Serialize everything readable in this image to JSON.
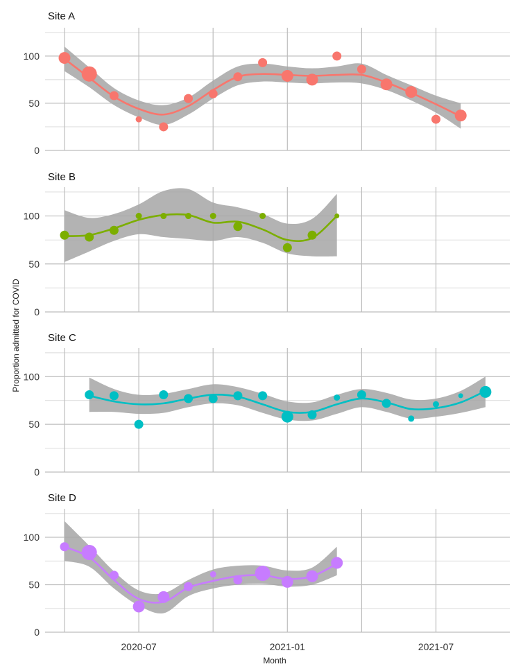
{
  "chart_data": {
    "type": "scatter",
    "xlabel": "Month",
    "ylabel": "Proportion admitted for COVID",
    "x_tick_labels": [
      "2020-07",
      "2021-01",
      "2021-07"
    ],
    "y_ticks": [
      0,
      50,
      100
    ],
    "ylim": [
      0,
      130
    ],
    "x_range_months": [
      "2020-04",
      "2021-09"
    ],
    "panels": [
      {
        "title": "Site A",
        "color": "#F8766D",
        "points": [
          {
            "month": "2020-04",
            "y": 98,
            "size": "large"
          },
          {
            "month": "2020-05",
            "y": 81,
            "size": "xlarge"
          },
          {
            "month": "2020-06",
            "y": 58,
            "size": "medium"
          },
          {
            "month": "2020-07",
            "y": 33,
            "size": "small"
          },
          {
            "month": "2020-08",
            "y": 25,
            "size": "medium"
          },
          {
            "month": "2020-09",
            "y": 55,
            "size": "medium"
          },
          {
            "month": "2020-10",
            "y": 60,
            "size": "medium"
          },
          {
            "month": "2020-11",
            "y": 78,
            "size": "medium"
          },
          {
            "month": "2020-12",
            "y": 93,
            "size": "medium"
          },
          {
            "month": "2021-01",
            "y": 79,
            "size": "large"
          },
          {
            "month": "2021-02",
            "y": 75,
            "size": "large"
          },
          {
            "month": "2021-03",
            "y": 100,
            "size": "medium"
          },
          {
            "month": "2021-04",
            "y": 86,
            "size": "medium"
          },
          {
            "month": "2021-05",
            "y": 70,
            "size": "large"
          },
          {
            "month": "2021-06",
            "y": 62,
            "size": "large"
          },
          {
            "month": "2021-07",
            "y": 33,
            "size": "medium"
          },
          {
            "month": "2021-08",
            "y": 37,
            "size": "large"
          }
        ],
        "smooth": [
          {
            "month": "2020-04",
            "y": 97,
            "lo": 84,
            "hi": 110
          },
          {
            "month": "2020-05",
            "y": 77,
            "lo": 67,
            "hi": 88
          },
          {
            "month": "2020-06",
            "y": 57,
            "lo": 48,
            "hi": 66
          },
          {
            "month": "2020-07",
            "y": 44,
            "lo": 35,
            "hi": 53
          },
          {
            "month": "2020-08",
            "y": 38,
            "lo": 27,
            "hi": 48
          },
          {
            "month": "2020-09",
            "y": 47,
            "lo": 38,
            "hi": 56
          },
          {
            "month": "2020-10",
            "y": 64,
            "lo": 55,
            "hi": 74
          },
          {
            "month": "2020-11",
            "y": 78,
            "lo": 69,
            "hi": 89
          },
          {
            "month": "2020-12",
            "y": 81,
            "lo": 73,
            "hi": 92
          },
          {
            "month": "2021-01",
            "y": 80,
            "lo": 72,
            "hi": 89
          },
          {
            "month": "2021-02",
            "y": 79,
            "lo": 71,
            "hi": 87
          },
          {
            "month": "2021-03",
            "y": 80,
            "lo": 72,
            "hi": 89
          },
          {
            "month": "2021-04",
            "y": 80,
            "lo": 71,
            "hi": 92
          },
          {
            "month": "2021-05",
            "y": 72,
            "lo": 64,
            "hi": 80
          },
          {
            "month": "2021-06",
            "y": 61,
            "lo": 53,
            "hi": 69
          },
          {
            "month": "2021-07",
            "y": 49,
            "lo": 40,
            "hi": 58
          },
          {
            "month": "2021-08",
            "y": 36,
            "lo": 23,
            "hi": 50
          }
        ]
      },
      {
        "title": "Site B",
        "color": "#7CAE00",
        "points": [
          {
            "month": "2020-04",
            "y": 80,
            "size": "medium"
          },
          {
            "month": "2020-05",
            "y": 78,
            "size": "medium"
          },
          {
            "month": "2020-06",
            "y": 85,
            "size": "medium"
          },
          {
            "month": "2020-07",
            "y": 100,
            "size": "small"
          },
          {
            "month": "2020-08",
            "y": 100,
            "size": "small"
          },
          {
            "month": "2020-09",
            "y": 100,
            "size": "small"
          },
          {
            "month": "2020-10",
            "y": 100,
            "size": "small"
          },
          {
            "month": "2020-11",
            "y": 89,
            "size": "medium"
          },
          {
            "month": "2020-12",
            "y": 100,
            "size": "small"
          },
          {
            "month": "2021-01",
            "y": 67,
            "size": "medium"
          },
          {
            "month": "2021-02",
            "y": 80,
            "size": "medium"
          },
          {
            "month": "2021-03",
            "y": 100,
            "size": "tiny"
          }
        ],
        "smooth": [
          {
            "month": "2020-04",
            "y": 79,
            "lo": 52,
            "hi": 106
          },
          {
            "month": "2020-05",
            "y": 80,
            "lo": 63,
            "hi": 98
          },
          {
            "month": "2020-06",
            "y": 87,
            "lo": 74,
            "hi": 102
          },
          {
            "month": "2020-07",
            "y": 96,
            "lo": 81,
            "hi": 112
          },
          {
            "month": "2020-08",
            "y": 101,
            "lo": 78,
            "hi": 126
          },
          {
            "month": "2020-09",
            "y": 101,
            "lo": 76,
            "hi": 128
          },
          {
            "month": "2020-10",
            "y": 93,
            "lo": 74,
            "hi": 114
          },
          {
            "month": "2020-11",
            "y": 94,
            "lo": 78,
            "hi": 109
          },
          {
            "month": "2020-12",
            "y": 86,
            "lo": 72,
            "hi": 102
          },
          {
            "month": "2021-01",
            "y": 75,
            "lo": 61,
            "hi": 92
          },
          {
            "month": "2021-02",
            "y": 77,
            "lo": 58,
            "hi": 97
          },
          {
            "month": "2021-03",
            "y": 100,
            "lo": 58,
            "hi": 123
          }
        ]
      },
      {
        "title": "Site C",
        "color": "#00BFC4",
        "points": [
          {
            "month": "2020-05",
            "y": 81,
            "size": "medium"
          },
          {
            "month": "2020-06",
            "y": 80,
            "size": "medium"
          },
          {
            "month": "2020-07",
            "y": 50,
            "size": "medium"
          },
          {
            "month": "2020-08",
            "y": 81,
            "size": "medium"
          },
          {
            "month": "2020-09",
            "y": 77,
            "size": "medium"
          },
          {
            "month": "2020-10",
            "y": 77,
            "size": "medium"
          },
          {
            "month": "2020-11",
            "y": 80,
            "size": "medium"
          },
          {
            "month": "2020-12",
            "y": 80,
            "size": "medium"
          },
          {
            "month": "2021-01",
            "y": 58,
            "size": "large"
          },
          {
            "month": "2021-02",
            "y": 60,
            "size": "medium"
          },
          {
            "month": "2021-03",
            "y": 78,
            "size": "small"
          },
          {
            "month": "2021-04",
            "y": 81,
            "size": "medium"
          },
          {
            "month": "2021-05",
            "y": 72,
            "size": "medium"
          },
          {
            "month": "2021-06",
            "y": 56,
            "size": "small"
          },
          {
            "month": "2021-07",
            "y": 71,
            "size": "small"
          },
          {
            "month": "2021-08",
            "y": 80,
            "size": "tiny"
          },
          {
            "month": "2021-09",
            "y": 84,
            "size": "large"
          }
        ],
        "smooth": [
          {
            "month": "2020-05",
            "y": 80,
            "lo": 63,
            "hi": 99
          },
          {
            "month": "2020-06",
            "y": 74,
            "lo": 63,
            "hi": 87
          },
          {
            "month": "2020-07",
            "y": 71,
            "lo": 61,
            "hi": 81
          },
          {
            "month": "2020-08",
            "y": 72,
            "lo": 62,
            "hi": 82
          },
          {
            "month": "2020-09",
            "y": 77,
            "lo": 68,
            "hi": 87
          },
          {
            "month": "2020-10",
            "y": 81,
            "lo": 72,
            "hi": 92
          },
          {
            "month": "2020-11",
            "y": 79,
            "lo": 70,
            "hi": 89
          },
          {
            "month": "2020-12",
            "y": 71,
            "lo": 62,
            "hi": 82
          },
          {
            "month": "2021-01",
            "y": 63,
            "lo": 55,
            "hi": 74
          },
          {
            "month": "2021-02",
            "y": 63,
            "lo": 54,
            "hi": 73
          },
          {
            "month": "2021-03",
            "y": 71,
            "lo": 61,
            "hi": 81
          },
          {
            "month": "2021-04",
            "y": 77,
            "lo": 68,
            "hi": 87
          },
          {
            "month": "2021-05",
            "y": 73,
            "lo": 63,
            "hi": 83
          },
          {
            "month": "2021-06",
            "y": 66,
            "lo": 56,
            "hi": 76
          },
          {
            "month": "2021-07",
            "y": 67,
            "lo": 58,
            "hi": 77
          },
          {
            "month": "2021-08",
            "y": 73,
            "lo": 62,
            "hi": 85
          },
          {
            "month": "2021-09",
            "y": 85,
            "lo": 68,
            "hi": 100
          }
        ]
      },
      {
        "title": "Site D",
        "color": "#C77CFF",
        "points": [
          {
            "month": "2020-04",
            "y": 90,
            "size": "medium"
          },
          {
            "month": "2020-05",
            "y": 84,
            "size": "xlarge"
          },
          {
            "month": "2020-06",
            "y": 60,
            "size": "medium"
          },
          {
            "month": "2020-07",
            "y": 27,
            "size": "large"
          },
          {
            "month": "2020-08",
            "y": 37,
            "size": "large"
          },
          {
            "month": "2020-09",
            "y": 48,
            "size": "medium"
          },
          {
            "month": "2020-10",
            "y": 61,
            "size": "small"
          },
          {
            "month": "2020-11",
            "y": 55,
            "size": "medium"
          },
          {
            "month": "2020-12",
            "y": 62,
            "size": "xlarge"
          },
          {
            "month": "2021-01",
            "y": 53,
            "size": "large"
          },
          {
            "month": "2021-02",
            "y": 59,
            "size": "large"
          },
          {
            "month": "2021-03",
            "y": 73,
            "size": "large"
          }
        ],
        "smooth": [
          {
            "month": "2020-04",
            "y": 90,
            "lo": 75,
            "hi": 117
          },
          {
            "month": "2020-05",
            "y": 79,
            "lo": 69,
            "hi": 91
          },
          {
            "month": "2020-06",
            "y": 55,
            "lo": 46,
            "hi": 64
          },
          {
            "month": "2020-07",
            "y": 35,
            "lo": 28,
            "hi": 44
          },
          {
            "month": "2020-08",
            "y": 32,
            "lo": 20,
            "hi": 41
          },
          {
            "month": "2020-09",
            "y": 47,
            "lo": 38,
            "hi": 55
          },
          {
            "month": "2020-10",
            "y": 54,
            "lo": 46,
            "hi": 66
          },
          {
            "month": "2020-11",
            "y": 59,
            "lo": 50,
            "hi": 70
          },
          {
            "month": "2020-12",
            "y": 60,
            "lo": 51,
            "hi": 70
          },
          {
            "month": "2021-01",
            "y": 56,
            "lo": 48,
            "hi": 65
          },
          {
            "month": "2021-02",
            "y": 59,
            "lo": 50,
            "hi": 68
          },
          {
            "month": "2021-03",
            "y": 72,
            "lo": 60,
            "hi": 90
          }
        ]
      }
    ]
  }
}
